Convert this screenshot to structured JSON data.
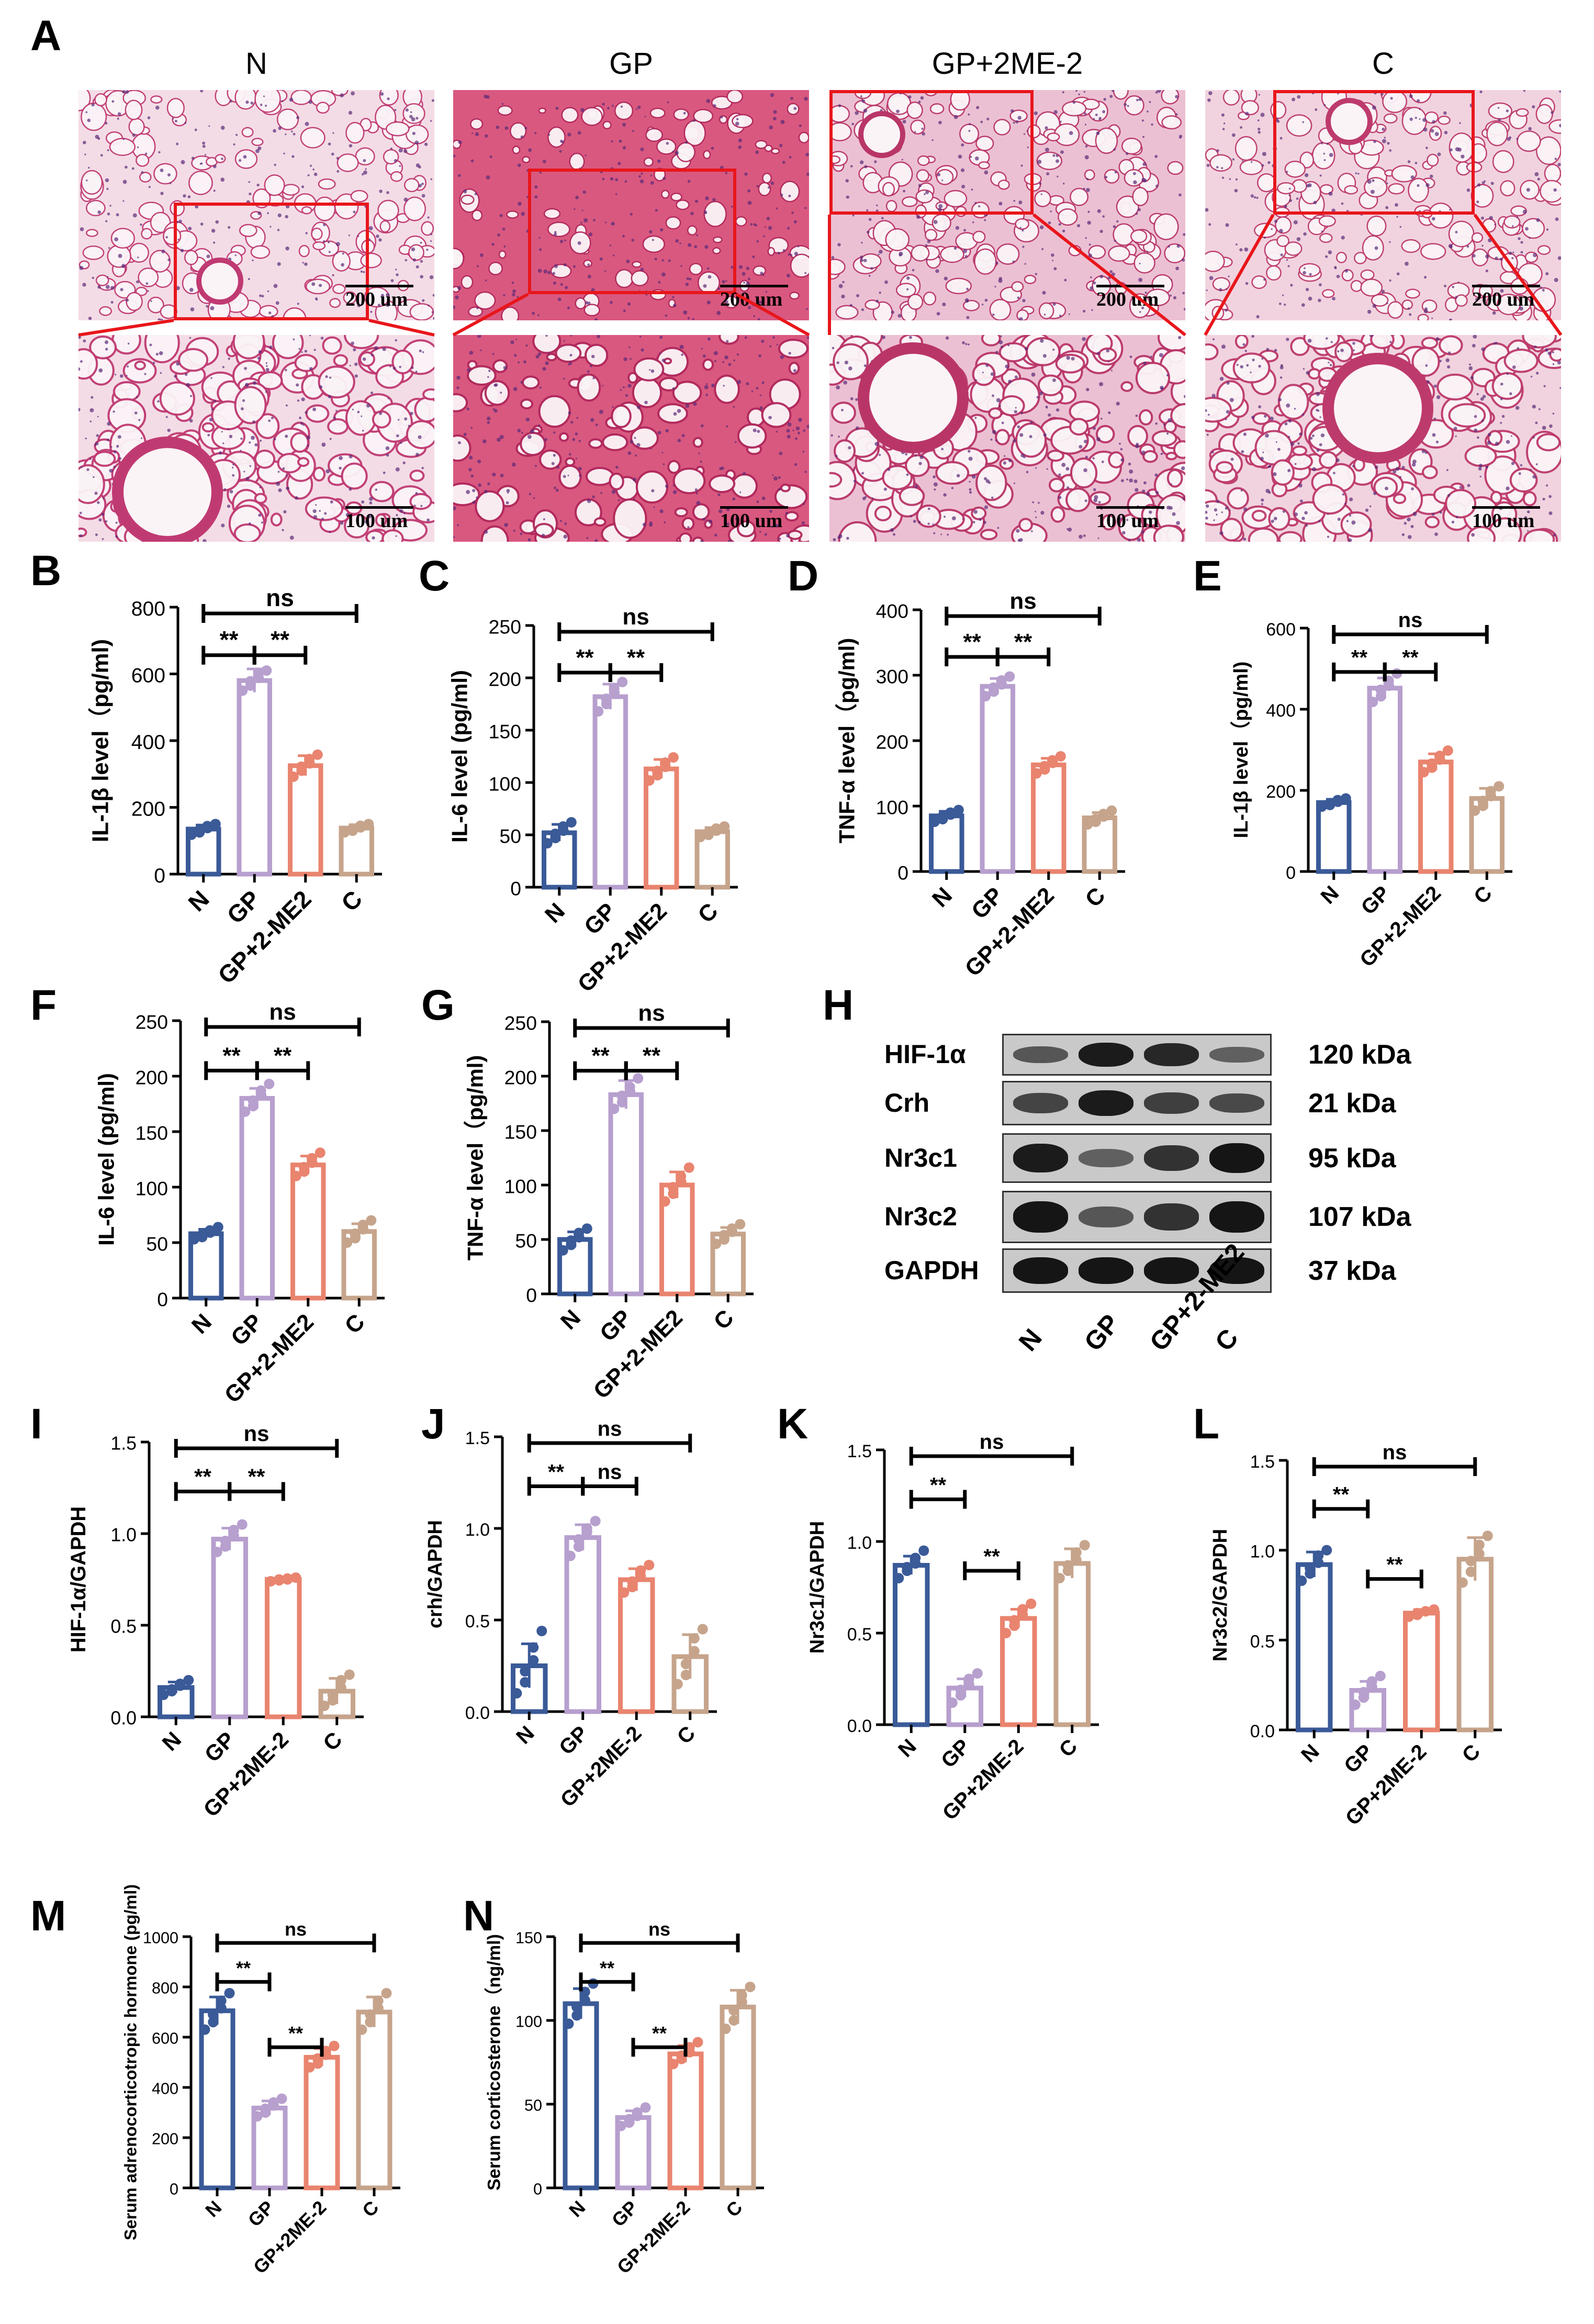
{
  "panel_A": {
    "letter": "A",
    "groups": [
      {
        "title": "N",
        "scale_top": "200 um",
        "scale_bottom": "100 um",
        "tissue": "#f4dce6",
        "stain": "#c03a72"
      },
      {
        "title": "GP",
        "scale_top": "200 um",
        "scale_bottom": "100 um",
        "tissue": "#d9587f",
        "stain": "#b0285c"
      },
      {
        "title": "GP+2ME-2",
        "scale_top": "200 um",
        "scale_bottom": "100 um",
        "tissue": "#ecc0d3",
        "stain": "#b93568"
      },
      {
        "title": "C",
        "scale_top": "200 um",
        "scale_bottom": "100 um",
        "tissue": "#f1d3df",
        "stain": "#bd3a6c"
      }
    ]
  },
  "colors": {
    "N": "#3a5a98",
    "GP": "#b79fce",
    "GP2": "#e9846f",
    "C": "#c6a48c"
  },
  "chart_data": [
    {
      "id": "B",
      "type": "bar",
      "ylabel": "IL-1β level（pg/ml)",
      "ylim": [
        0,
        800
      ],
      "ticks": [
        0,
        200,
        400,
        600,
        800
      ],
      "categories": [
        "N",
        "GP",
        "GP+2-ME2",
        "C"
      ],
      "values": [
        135,
        580,
        325,
        138
      ],
      "errors": [
        12,
        35,
        30,
        10
      ],
      "points": [
        [
          118,
          125,
          132,
          138,
          144,
          150
        ],
        [
          550,
          565,
          578,
          588,
          598,
          610
        ],
        [
          292,
          310,
          322,
          332,
          345,
          358
        ],
        [
          125,
          130,
          136,
          140,
          145,
          150
        ]
      ],
      "sig": [
        {
          "from": 0,
          "to": 3,
          "label": "ns"
        },
        {
          "from": 0,
          "to": 1,
          "label": "**"
        },
        {
          "from": 1,
          "to": 2,
          "label": "**"
        }
      ]
    },
    {
      "id": "C",
      "type": "bar",
      "ylabel": "IL-6 level (pg/ml)",
      "ylim": [
        0,
        250
      ],
      "ticks": [
        0,
        50,
        100,
        150,
        200,
        250
      ],
      "categories": [
        "N",
        "GP",
        "GP+2-ME2",
        "C"
      ],
      "values": [
        52,
        182,
        113,
        53
      ],
      "errors": [
        8,
        12,
        9,
        4
      ],
      "points": [
        [
          42,
          47,
          51,
          54,
          58,
          62
        ],
        [
          168,
          175,
          180,
          186,
          190,
          196
        ],
        [
          102,
          107,
          111,
          115,
          119,
          124
        ],
        [
          48,
          50,
          52,
          54,
          56,
          58
        ]
      ],
      "sig": [
        {
          "from": 0,
          "to": 3,
          "label": "ns"
        },
        {
          "from": 0,
          "to": 1,
          "label": "**"
        },
        {
          "from": 1,
          "to": 2,
          "label": "**"
        }
      ]
    },
    {
      "id": "D",
      "type": "bar",
      "ylabel": "TNF-α level（pg/ml)",
      "ylim": [
        0,
        400
      ],
      "ticks": [
        0,
        100,
        200,
        300,
        400
      ],
      "categories": [
        "N",
        "GP",
        "GP+2-ME2",
        "C"
      ],
      "values": [
        85,
        283,
        163,
        82
      ],
      "errors": [
        7,
        12,
        10,
        8
      ],
      "points": [
        [
          76,
          80,
          84,
          87,
          90,
          94
        ],
        [
          268,
          275,
          281,
          286,
          292,
          298
        ],
        [
          150,
          156,
          161,
          166,
          170,
          176
        ],
        [
          72,
          76,
          80,
          84,
          88,
          93
        ]
      ],
      "sig": [
        {
          "from": 0,
          "to": 3,
          "label": "ns"
        },
        {
          "from": 0,
          "to": 1,
          "label": "**"
        },
        {
          "from": 1,
          "to": 2,
          "label": "**"
        }
      ]
    },
    {
      "id": "E",
      "type": "bar",
      "ylabel": "IL-1β level（pg/ml)",
      "ylim": [
        0,
        600
      ],
      "ticks": [
        0,
        200,
        400,
        600
      ],
      "categories": [
        "N",
        "GP",
        "GP+2-ME2",
        "C"
      ],
      "values": [
        170,
        452,
        270,
        180
      ],
      "errors": [
        8,
        25,
        20,
        25
      ],
      "points": [
        [
          160,
          164,
          168,
          172,
          176,
          180
        ],
        [
          418,
          432,
          448,
          458,
          470,
          488
        ],
        [
          245,
          256,
          266,
          276,
          285,
          298
        ],
        [
          150,
          162,
          174,
          186,
          198,
          210
        ]
      ],
      "sig": [
        {
          "from": 0,
          "to": 3,
          "label": "ns"
        },
        {
          "from": 0,
          "to": 1,
          "label": "**"
        },
        {
          "from": 1,
          "to": 2,
          "label": "**"
        }
      ]
    },
    {
      "id": "F",
      "type": "bar",
      "ylabel": "IL-6 level (pg/ml)",
      "ylim": [
        0,
        250
      ],
      "ticks": [
        0,
        50,
        100,
        150,
        200,
        250
      ],
      "categories": [
        "N",
        "GP",
        "GP+2-ME2",
        "C"
      ],
      "values": [
        58,
        180,
        120,
        60
      ],
      "errors": [
        4,
        9,
        8,
        7
      ],
      "points": [
        [
          53,
          55,
          57,
          59,
          61,
          64
        ],
        [
          168,
          173,
          178,
          183,
          187,
          193
        ],
        [
          110,
          114,
          118,
          122,
          126,
          131
        ],
        [
          50,
          54,
          58,
          62,
          66,
          70
        ]
      ],
      "sig": [
        {
          "from": 0,
          "to": 3,
          "label": "ns"
        },
        {
          "from": 0,
          "to": 1,
          "label": "**"
        },
        {
          "from": 1,
          "to": 2,
          "label": "**"
        }
      ]
    },
    {
      "id": "G",
      "type": "bar",
      "ylabel": "TNF-α level（pg/ml)",
      "ylim": [
        0,
        250
      ],
      "ticks": [
        0,
        50,
        100,
        150,
        200,
        250
      ],
      "categories": [
        "N",
        "GP",
        "GP+2-ME2",
        "C"
      ],
      "values": [
        50,
        183,
        100,
        55
      ],
      "errors": [
        7,
        13,
        12,
        6
      ],
      "points": [
        [
          40,
          45,
          49,
          52,
          56,
          60
        ],
        [
          170,
          176,
          182,
          186,
          190,
          198
        ],
        [
          85,
          92,
          98,
          103,
          108,
          116
        ],
        [
          46,
          50,
          54,
          57,
          60,
          64
        ]
      ],
      "sig": [
        {
          "from": 0,
          "to": 3,
          "label": "ns"
        },
        {
          "from": 0,
          "to": 1,
          "label": "**"
        },
        {
          "from": 1,
          "to": 2,
          "label": "**"
        }
      ]
    },
    {
      "id": "I",
      "type": "bar",
      "ylabel": "HIF-1α/GAPDH",
      "ylim": [
        0,
        1.5
      ],
      "ticks": [
        0.0,
        0.5,
        1.0,
        1.5
      ],
      "categories": [
        "N",
        "GP",
        "GP+2ME-2",
        "C"
      ],
      "values": [
        0.16,
        0.97,
        0.75,
        0.14
      ],
      "errors": [
        0.03,
        0.06,
        0.01,
        0.07
      ],
      "points": [
        [
          0.12,
          0.14,
          0.15,
          0.17,
          0.18,
          0.2
        ],
        [
          0.9,
          0.93,
          0.96,
          0.99,
          1.02,
          1.05
        ],
        [
          0.74,
          0.745,
          0.75,
          0.75,
          0.755,
          0.76
        ],
        [
          0.06,
          0.09,
          0.12,
          0.16,
          0.2,
          0.23
        ]
      ],
      "sig": [
        {
          "from": 0,
          "to": 3,
          "label": "ns"
        },
        {
          "from": 0,
          "to": 1,
          "label": "**"
        },
        {
          "from": 1,
          "to": 2,
          "label": "**"
        }
      ]
    },
    {
      "id": "J",
      "type": "bar",
      "ylabel": "crh/GAPDH",
      "ylim": [
        0,
        1.5
      ],
      "ticks": [
        0.0,
        0.5,
        1.0,
        1.5
      ],
      "categories": [
        "N",
        "GP",
        "GP+2ME-2",
        "C"
      ],
      "values": [
        0.25,
        0.95,
        0.72,
        0.3
      ],
      "errors": [
        0.12,
        0.07,
        0.06,
        0.12
      ],
      "points": [
        [
          0.1,
          0.16,
          0.22,
          0.28,
          0.35,
          0.44
        ],
        [
          0.85,
          0.9,
          0.94,
          0.98,
          1.0,
          1.04
        ],
        [
          0.65,
          0.68,
          0.71,
          0.74,
          0.77,
          0.8
        ],
        [
          0.15,
          0.2,
          0.26,
          0.33,
          0.4,
          0.45
        ]
      ],
      "sig": [
        {
          "from": 0,
          "to": 3,
          "label": "ns"
        },
        {
          "from": 0,
          "to": 1,
          "label": "**"
        },
        {
          "from": 1,
          "to": 2,
          "label": "ns"
        }
      ]
    },
    {
      "id": "K",
      "type": "bar",
      "ylabel": "Nr3c1/GAPDH",
      "ylim": [
        0,
        1.5
      ],
      "ticks": [
        0.0,
        0.5,
        1.0,
        1.5
      ],
      "categories": [
        "N",
        "GP",
        "GP+2ME-2",
        "C"
      ],
      "values": [
        0.87,
        0.2,
        0.58,
        0.88
      ],
      "errors": [
        0.05,
        0.05,
        0.05,
        0.08
      ],
      "points": [
        [
          0.8,
          0.84,
          0.86,
          0.88,
          0.91,
          0.95
        ],
        [
          0.12,
          0.16,
          0.19,
          0.22,
          0.25,
          0.28
        ],
        [
          0.5,
          0.54,
          0.57,
          0.6,
          0.63,
          0.66
        ],
        [
          0.8,
          0.84,
          0.87,
          0.9,
          0.94,
          0.98
        ]
      ],
      "sig": [
        {
          "from": 0,
          "to": 3,
          "label": "ns"
        },
        {
          "from": 0,
          "to": 1,
          "label": "**"
        },
        {
          "from": 1,
          "to": 2,
          "label": "**"
        }
      ]
    },
    {
      "id": "L",
      "type": "bar",
      "ylabel": "Nr3c2/GAPDH",
      "ylim": [
        0,
        1.5
      ],
      "ticks": [
        0.0,
        0.5,
        1.0,
        1.5
      ],
      "categories": [
        "N",
        "GP",
        "GP+2ME-2",
        "C"
      ],
      "values": [
        0.92,
        0.22,
        0.65,
        0.95
      ],
      "errors": [
        0.07,
        0.05,
        0.02,
        0.12
      ],
      "points": [
        [
          0.83,
          0.87,
          0.9,
          0.93,
          0.97,
          1.0
        ],
        [
          0.14,
          0.18,
          0.21,
          0.24,
          0.27,
          0.3
        ],
        [
          0.63,
          0.64,
          0.65,
          0.66,
          0.66,
          0.67
        ],
        [
          0.82,
          0.88,
          0.94,
          0.98,
          1.03,
          1.08
        ]
      ],
      "sig": [
        {
          "from": 0,
          "to": 3,
          "label": "ns"
        },
        {
          "from": 0,
          "to": 1,
          "label": "**"
        },
        {
          "from": 1,
          "to": 2,
          "label": "**"
        }
      ]
    },
    {
      "id": "M",
      "type": "bar",
      "ylabel": "Serum adrenocorticotropic hormone (pg/ml)",
      "ylim": [
        0,
        1000
      ],
      "ticks": [
        0,
        200,
        400,
        600,
        800,
        1000
      ],
      "categories": [
        "N",
        "GP",
        "GP+2ME-2",
        "C"
      ],
      "values": [
        705,
        318,
        520,
        700
      ],
      "errors": [
        55,
        28,
        35,
        60
      ],
      "points": [
        [
          630,
          660,
          690,
          715,
          745,
          775
        ],
        [
          285,
          300,
          315,
          328,
          340,
          355
        ],
        [
          480,
          495,
          515,
          530,
          545,
          565
        ],
        [
          630,
          660,
          690,
          715,
          745,
          775
        ]
      ],
      "sig": [
        {
          "from": 0,
          "to": 3,
          "label": "ns"
        },
        {
          "from": 0,
          "to": 1,
          "label": "**"
        },
        {
          "from": 1,
          "to": 2,
          "label": "**"
        }
      ]
    },
    {
      "id": "N",
      "type": "bar",
      "ylabel": "Serum corticosterone（ng/ml)",
      "ylim": [
        0,
        150
      ],
      "ticks": [
        0,
        50,
        100,
        150
      ],
      "categories": [
        "N",
        "GP",
        "GP+2ME-2",
        "C"
      ],
      "values": [
        110,
        42,
        80,
        108
      ],
      "errors": [
        9,
        4,
        5,
        10
      ],
      "points": [
        [
          98,
          103,
          108,
          112,
          117,
          122
        ],
        [
          37,
          39,
          41,
          43,
          45,
          48
        ],
        [
          74,
          77,
          79,
          81,
          84,
          87
        ],
        [
          95,
          100,
          106,
          111,
          115,
          120
        ]
      ],
      "sig": [
        {
          "from": 0,
          "to": 3,
          "label": "ns"
        },
        {
          "from": 0,
          "to": 1,
          "label": "**"
        },
        {
          "from": 1,
          "to": 2,
          "label": "**"
        }
      ]
    }
  ],
  "panel_H": {
    "letter": "H",
    "rows": [
      {
        "label": "HIF-1α",
        "kda": "120 kDa",
        "intensity": [
          0.45,
          0.95,
          0.85,
          0.35
        ]
      },
      {
        "label": "Crh",
        "kda": "21 kDa",
        "intensity": [
          0.6,
          0.95,
          0.65,
          0.55
        ]
      },
      {
        "label": "Nr3c1",
        "kda": "95 kDa",
        "intensity": [
          0.95,
          0.35,
          0.75,
          1.0
        ]
      },
      {
        "label": "Nr3c2",
        "kda": "107 kDa",
        "intensity": [
          1.0,
          0.45,
          0.75,
          1.0
        ]
      },
      {
        "label": "GAPDH",
        "kda": "37 kDa",
        "intensity": [
          1.0,
          1.0,
          1.0,
          1.0
        ]
      }
    ],
    "lanes": [
      "N",
      "GP",
      "GP+2-ME2",
      "C"
    ]
  }
}
